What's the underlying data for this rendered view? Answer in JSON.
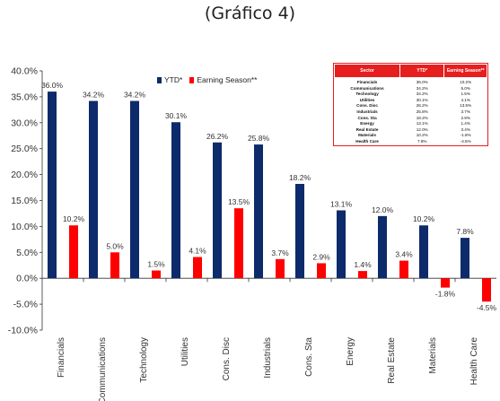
{
  "heading": "(Gráfico 4)",
  "chart_data": {
    "type": "bar",
    "categories": [
      "Financials",
      "Communications",
      "Technology",
      "Utilities",
      "Cons. Disc",
      "Industrials",
      "Cons. Sta",
      "Energy",
      "Real Estate",
      "Materials",
      "Health Care"
    ],
    "series": [
      {
        "name": "YTD*",
        "color": "#0d2a6b",
        "values": [
          36.0,
          34.2,
          34.2,
          30.1,
          26.2,
          25.8,
          18.2,
          13.1,
          12.0,
          10.2,
          7.8
        ]
      },
      {
        "name": "Earning Season**",
        "color": "#ff0000",
        "values": [
          10.2,
          5.0,
          1.5,
          4.1,
          13.5,
          3.7,
          2.9,
          1.4,
          3.4,
          -1.8,
          -4.5
        ]
      }
    ],
    "ylim": [
      -10,
      40
    ],
    "yticks": [
      -10,
      -5,
      0,
      5,
      10,
      15,
      20,
      25,
      30,
      35,
      40
    ],
    "yticks_labels": [
      "-10.0%",
      "-5.0%",
      "0.0%",
      "5.0%",
      "10.0%",
      "15.0%",
      "20.0%",
      "25.0%",
      "30.0%",
      "35.0%",
      "40.0%"
    ],
    "grid": false,
    "legend": "top-left"
  },
  "table": {
    "headers": [
      "Sector",
      "YTD*",
      "Earning Season**"
    ],
    "rows": [
      [
        "Financials",
        "36.0%",
        "10.2%"
      ],
      [
        "Communications",
        "34.2%",
        "5.0%"
      ],
      [
        "Technology",
        "34.2%",
        "1.5%"
      ],
      [
        "Utilities",
        "30.1%",
        "4.1%"
      ],
      [
        "Cons. Disc",
        "26.2%",
        "13.5%"
      ],
      [
        "Industrials",
        "25.8%",
        "3.7%"
      ],
      [
        "Cons. Sta",
        "18.2%",
        "2.9%"
      ],
      [
        "Energy",
        "13.1%",
        "1.4%"
      ],
      [
        "Real Estate",
        "12.0%",
        "3.4%"
      ],
      [
        "Materials",
        "10.2%",
        "-1.8%"
      ],
      [
        "Health Care",
        "7.8%",
        "-4.5%"
      ]
    ]
  }
}
